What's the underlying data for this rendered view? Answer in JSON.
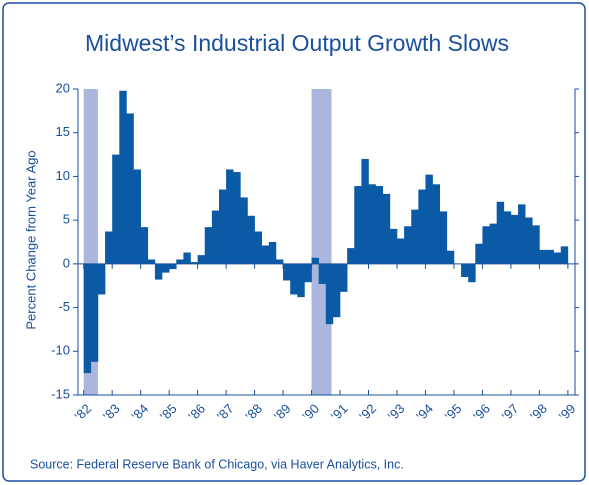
{
  "chart_data": {
    "type": "bar",
    "title": "Midwest’s Industrial Output Growth Slows",
    "y_label": "Percent Change from Year Ago",
    "source": "Source: Federal Reserve Bank of Chicago, via Haver Analytics, Inc.",
    "color": "#0b5aa6",
    "shade_color": "#abb6de",
    "bar_width": 0.25,
    "x": [
      1982,
      1982.25,
      1982.5,
      1982.75,
      1983,
      1983.25,
      1983.5,
      1983.75,
      1984,
      1984.25,
      1984.5,
      1984.75,
      1985,
      1985.25,
      1985.5,
      1985.75,
      1986,
      1986.25,
      1986.5,
      1986.75,
      1987,
      1987.25,
      1987.5,
      1987.75,
      1988,
      1988.25,
      1988.5,
      1988.75,
      1989,
      1989.25,
      1989.5,
      1989.75,
      1990,
      1990.25,
      1990.5,
      1990.75,
      1991,
      1991.25,
      1991.5,
      1991.75,
      1992,
      1992.25,
      1992.5,
      1992.75,
      1993,
      1993.25,
      1993.5,
      1993.75,
      1994,
      1994.25,
      1994.5,
      1994.75,
      1995,
      1995.25,
      1995.5,
      1995.75,
      1996,
      1996.25,
      1996.5,
      1996.75,
      1997,
      1997.25,
      1997.5,
      1997.75,
      1998,
      1998.25,
      1998.5,
      1998.75
    ],
    "values": [
      -12.5,
      -11.2,
      -3.5,
      3.7,
      12.5,
      19.8,
      17.2,
      10.8,
      4.2,
      0.5,
      -1.8,
      -1.0,
      -0.6,
      0.5,
      1.3,
      0.2,
      1.0,
      4.2,
      6.1,
      8.5,
      10.8,
      10.5,
      7.6,
      5.5,
      3.7,
      2.1,
      2.5,
      0.5,
      -1.9,
      -3.5,
      -3.8,
      -2.1,
      0.7,
      -2.3,
      -6.9,
      -6.1,
      -3.2,
      1.8,
      8.9,
      12.0,
      9.1,
      8.9,
      8.0,
      4.0,
      2.9,
      4.3,
      6.2,
      8.5,
      10.2,
      9.1,
      6.0,
      1.5,
      0,
      -1.5,
      -2.1,
      2.3,
      4.3,
      4.6,
      7.1,
      6.0,
      5.6,
      6.8,
      5.3,
      4.4,
      1.6,
      1.6,
      1.3,
      2.0
    ],
    "shaded_periods": [
      [
        1982,
        1982.5
      ],
      [
        1990,
        1990.7
      ]
    ],
    "xlim": [
      1981.8,
      1999.25
    ],
    "xticks": [
      {
        "value": 1982,
        "label": "’82"
      },
      {
        "value": 1983,
        "label": "’83"
      },
      {
        "value": 1984,
        "label": "’84"
      },
      {
        "value": 1985,
        "label": "’85"
      },
      {
        "value": 1986,
        "label": "’86"
      },
      {
        "value": 1987,
        "label": "’87"
      },
      {
        "value": 1988,
        "label": "’88"
      },
      {
        "value": 1989,
        "label": "’89"
      },
      {
        "value": 1990,
        "label": "’90"
      },
      {
        "value": 1991,
        "label": "’91"
      },
      {
        "value": 1992,
        "label": "’92"
      },
      {
        "value": 1993,
        "label": "’93"
      },
      {
        "value": 1994,
        "label": "’94"
      },
      {
        "value": 1995,
        "label": "’95"
      },
      {
        "value": 1996,
        "label": "’96"
      },
      {
        "value": 1997,
        "label": "’97"
      },
      {
        "value": 1998,
        "label": "’98"
      },
      {
        "value": 1999,
        "label": "’99"
      }
    ],
    "ylim": [
      -15,
      20
    ],
    "yticks": [
      -15,
      -10,
      -5,
      0,
      5,
      10,
      15,
      20
    ]
  }
}
